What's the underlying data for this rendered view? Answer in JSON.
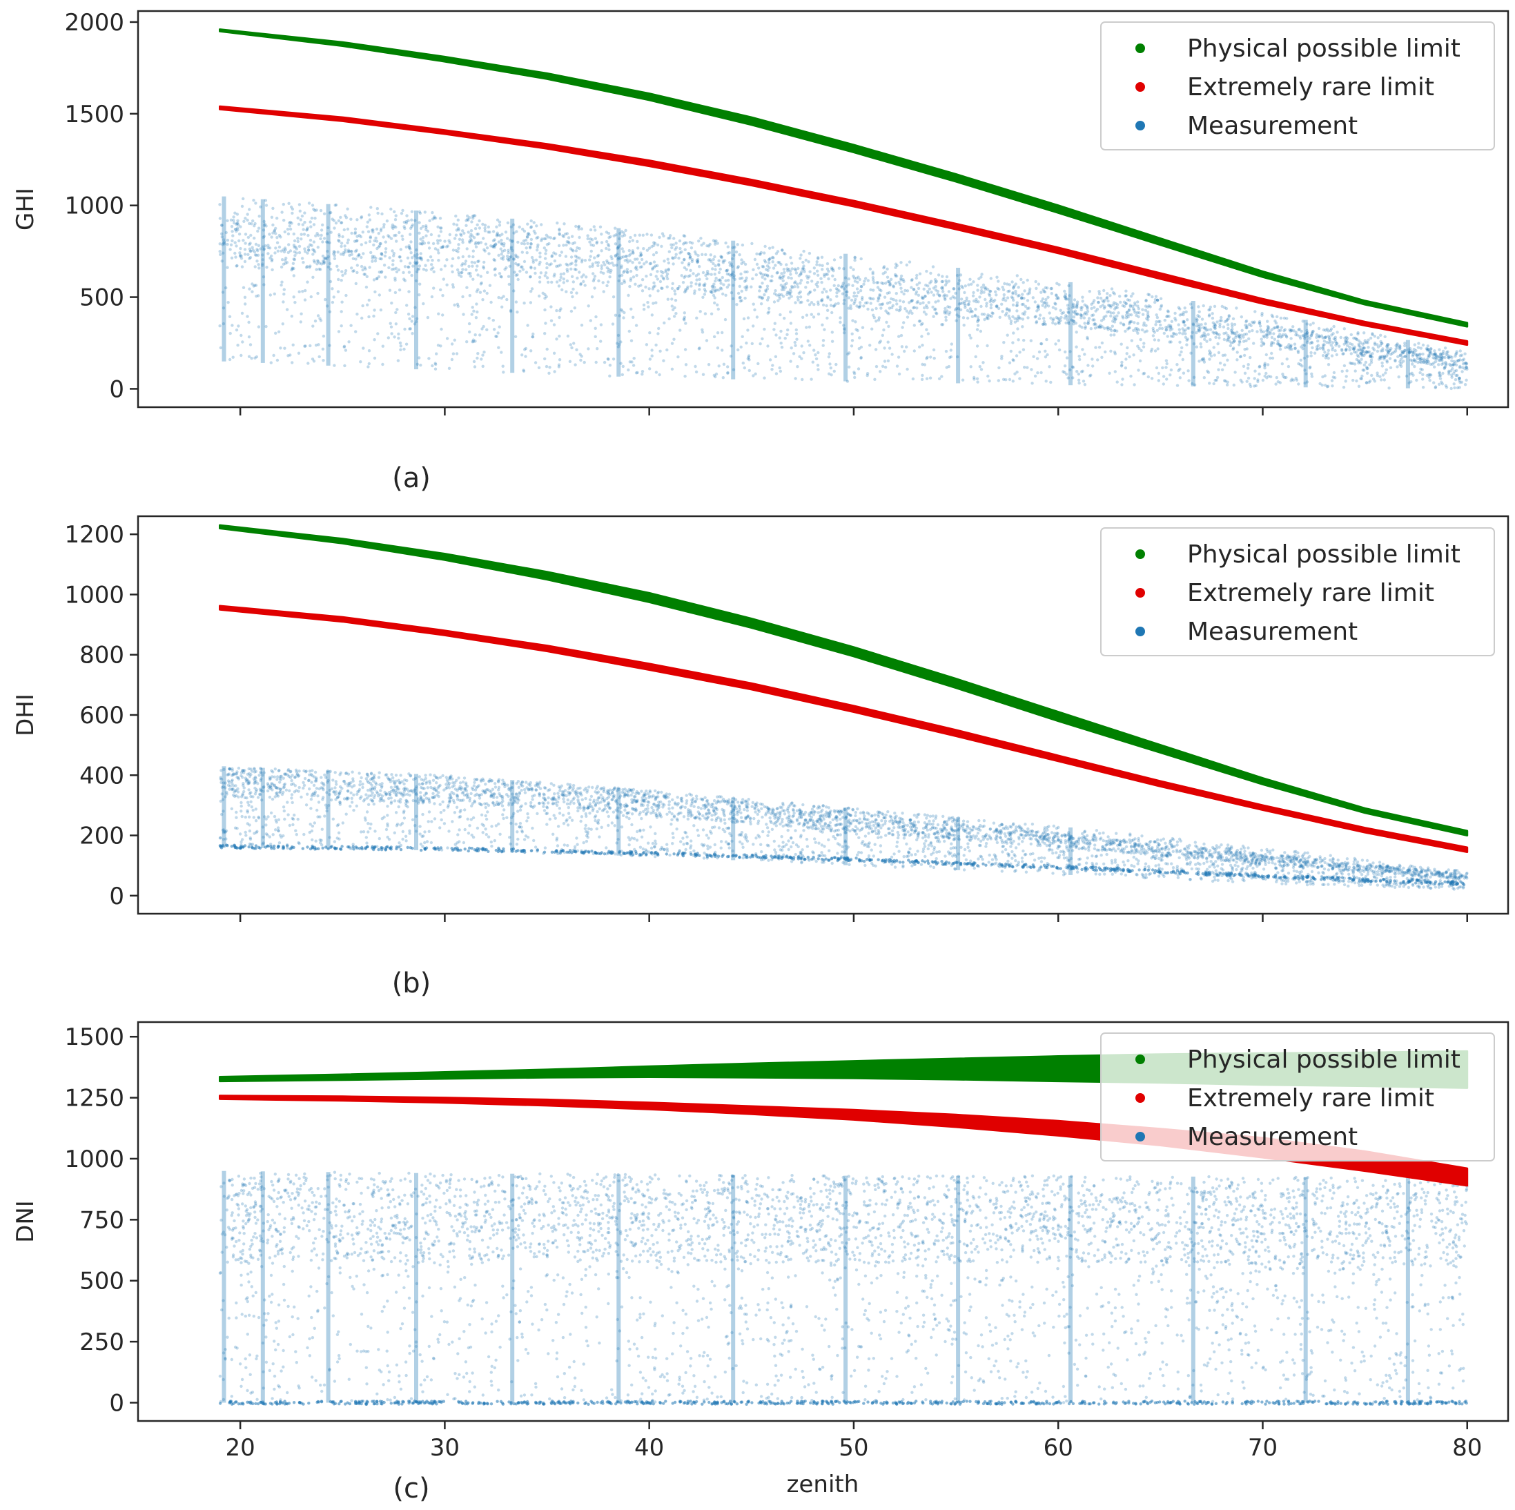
{
  "chart_data": [
    {
      "type": "scatter",
      "panel_label": "(a)",
      "ylabel": "GHI",
      "xlabel": "",
      "xlim": [
        15,
        82
      ],
      "ylim": [
        -100,
        2060
      ],
      "xticks": [
        20,
        30,
        40,
        50,
        60,
        70,
        80
      ],
      "show_xtick_labels": false,
      "yticks": [
        0,
        500,
        1000,
        1500,
        2000
      ],
      "ytick_labels": [
        "0",
        "500",
        "1000",
        "1500",
        "2000"
      ],
      "legend": {
        "placement": "top-right",
        "entries": [
          "Physical possible limit",
          "Extremely rare limit",
          "Measurement"
        ]
      },
      "series": [
        {
          "name": "Physical possible limit",
          "color": "#008000",
          "x": [
            19,
            25,
            30,
            35,
            40,
            45,
            50,
            55,
            60,
            65,
            70,
            75,
            80
          ],
          "upper": [
            1960,
            1890,
            1810,
            1720,
            1610,
            1480,
            1330,
            1170,
            1000,
            820,
            640,
            480,
            360
          ],
          "lower": [
            1950,
            1870,
            1785,
            1690,
            1575,
            1440,
            1290,
            1130,
            960,
            785,
            610,
            460,
            340
          ]
        },
        {
          "name": "Extremely rare limit",
          "color": "#e00000",
          "x": [
            19,
            25,
            30,
            35,
            40,
            45,
            50,
            55,
            60,
            65,
            70,
            75,
            80
          ],
          "upper": [
            1540,
            1480,
            1410,
            1335,
            1245,
            1140,
            1025,
            900,
            770,
            630,
            490,
            365,
            260
          ],
          "lower": [
            1525,
            1460,
            1390,
            1310,
            1215,
            1110,
            995,
            870,
            740,
            600,
            465,
            345,
            240
          ]
        },
        {
          "name": "Measurement",
          "color": "#1f77b4",
          "x": [
            19,
            30,
            40,
            50,
            60,
            70,
            80
          ],
          "top": [
            1050,
            960,
            860,
            730,
            590,
            420,
            200
          ],
          "dense_top": [
            950,
            900,
            800,
            650,
            520,
            360,
            170
          ],
          "bottom": [
            150,
            100,
            60,
            40,
            20,
            10,
            0
          ],
          "vertical_bands": [
            19.1,
            21,
            24.2,
            28.5,
            33.2,
            38.4,
            44,
            49.5,
            55,
            60.5,
            66.5,
            72,
            77
          ]
        }
      ]
    },
    {
      "type": "scatter",
      "panel_label": "(b)",
      "ylabel": "DHI",
      "xlabel": "",
      "xlim": [
        15,
        82
      ],
      "ylim": [
        -60,
        1260
      ],
      "xticks": [
        20,
        30,
        40,
        50,
        60,
        70,
        80
      ],
      "show_xtick_labels": false,
      "yticks": [
        0,
        200,
        400,
        600,
        800,
        1000,
        1200
      ],
      "ytick_labels": [
        "0",
        "200",
        "400",
        "600",
        "800",
        "1000",
        "1200"
      ],
      "legend": {
        "placement": "top-right",
        "entries": [
          "Physical possible limit",
          "Extremely rare limit",
          "Measurement"
        ]
      },
      "series": [
        {
          "name": "Physical possible limit",
          "color": "#008000",
          "x": [
            19,
            25,
            30,
            35,
            40,
            45,
            50,
            55,
            60,
            65,
            70,
            75,
            80
          ],
          "upper": [
            1230,
            1185,
            1135,
            1075,
            1005,
            920,
            825,
            720,
            610,
            500,
            390,
            290,
            215
          ],
          "lower": [
            1220,
            1170,
            1115,
            1050,
            975,
            890,
            795,
            690,
            580,
            475,
            370,
            275,
            200
          ]
        },
        {
          "name": "Extremely rare limit",
          "color": "#e00000",
          "x": [
            19,
            25,
            30,
            35,
            40,
            45,
            50,
            55,
            60,
            65,
            70,
            75,
            80
          ],
          "upper": [
            962,
            925,
            880,
            830,
            770,
            705,
            630,
            550,
            465,
            380,
            300,
            225,
            160
          ],
          "lower": [
            950,
            910,
            865,
            812,
            750,
            685,
            610,
            530,
            447,
            363,
            285,
            210,
            145
          ]
        },
        {
          "name": "Measurement",
          "color": "#1f77b4",
          "x": [
            19,
            30,
            40,
            50,
            60,
            70,
            80
          ],
          "top": [
            430,
            400,
            350,
            290,
            230,
            160,
            80
          ],
          "dense_top": [
            420,
            390,
            340,
            270,
            210,
            140,
            70
          ],
          "bottom": [
            160,
            150,
            130,
            100,
            70,
            40,
            20
          ],
          "baseline": [
            163,
            155,
            140,
            120,
            95,
            65,
            40
          ],
          "vertical_bands": [
            19.1,
            21,
            24.2,
            28.5,
            33.2,
            38.4,
            44,
            49.5,
            55,
            60.5
          ]
        }
      ]
    },
    {
      "type": "scatter",
      "panel_label": "(c)",
      "ylabel": "DNI",
      "xlabel": "zenith",
      "xlim": [
        15,
        82
      ],
      "ylim": [
        -75,
        1560
      ],
      "xticks": [
        20,
        30,
        40,
        50,
        60,
        70,
        80
      ],
      "xtick_labels": [
        "20",
        "30",
        "40",
        "50",
        "60",
        "70",
        "80"
      ],
      "show_xtick_labels": true,
      "yticks": [
        0,
        250,
        500,
        750,
        1000,
        1250,
        1500
      ],
      "ytick_labels": [
        "0",
        "250",
        "500",
        "750",
        "1000",
        "1250",
        "1500"
      ],
      "legend": {
        "placement": "top-right",
        "entries": [
          "Physical possible limit",
          "Extremely rare limit",
          "Measurement"
        ]
      },
      "series": [
        {
          "name": "Physical possible limit",
          "color": "#008000",
          "x": [
            19,
            25,
            30,
            35,
            40,
            45,
            50,
            55,
            60,
            65,
            70,
            75,
            80
          ],
          "upper": [
            1335,
            1345,
            1355,
            1365,
            1378,
            1390,
            1400,
            1410,
            1420,
            1428,
            1432,
            1435,
            1440
          ],
          "lower": [
            1318,
            1323,
            1328,
            1333,
            1335,
            1333,
            1330,
            1325,
            1318,
            1312,
            1303,
            1298,
            1290
          ]
        },
        {
          "name": "Extremely rare limit",
          "color": "#e00000",
          "x": [
            19,
            25,
            30,
            35,
            40,
            45,
            50,
            55,
            60,
            65,
            70,
            75,
            80
          ],
          "upper": [
            1258,
            1255,
            1250,
            1242,
            1230,
            1215,
            1200,
            1180,
            1155,
            1122,
            1085,
            1030,
            960
          ],
          "lower": [
            1245,
            1238,
            1230,
            1218,
            1203,
            1183,
            1160,
            1130,
            1095,
            1055,
            1005,
            950,
            890
          ]
        },
        {
          "name": "Measurement",
          "color": "#1f77b4",
          "x": [
            19,
            30,
            40,
            50,
            60,
            70,
            80
          ],
          "top": [
            950,
            940,
            935,
            930,
            930,
            925,
            920
          ],
          "dense_top": [
            900,
            890,
            880,
            880,
            880,
            870,
            860
          ],
          "bottom": [
            0,
            0,
            0,
            0,
            0,
            0,
            0
          ],
          "baseline": [
            0,
            0,
            0,
            0,
            0,
            0,
            0
          ],
          "vertical_bands": [
            19.1,
            21,
            24.2,
            28.5,
            33.2,
            38.4,
            44,
            49.5,
            55,
            60.5,
            66.5,
            72,
            77
          ]
        }
      ]
    }
  ]
}
